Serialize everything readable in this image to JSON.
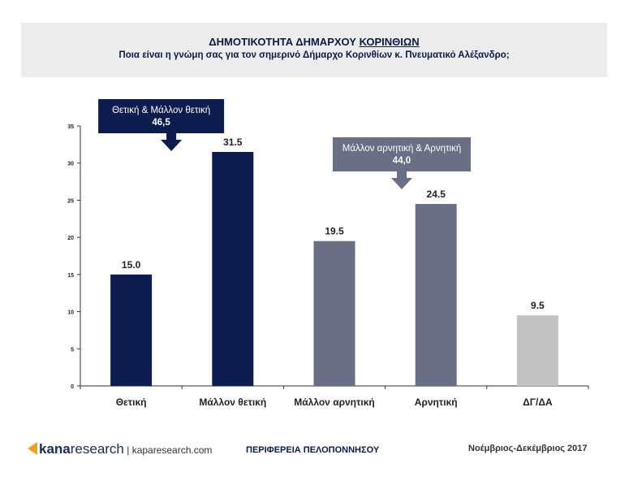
{
  "header": {
    "title_prefix": "ΔΗΜΟΤΙΚΟΤΗΤΑ ΔΗΜΑΡΧΟΥ ",
    "title_underlined": "ΚΟΡΙΝΘΙΩΝ",
    "subtitle": "Ποια είναι η γνώμη σας για τον σημερινό Δήμαρχο Κορινθίων κ. Πνευματικό Αλέξανδρο;"
  },
  "chart_data": {
    "type": "bar",
    "categories": [
      "Θετική",
      "Μάλλον θετική",
      "Μάλλον αρνητική",
      "Αρνητική",
      "ΔΓ/ΔΑ"
    ],
    "values": [
      15.0,
      31.5,
      19.5,
      24.5,
      9.5
    ],
    "value_labels": [
      "15.0",
      "31.5",
      "19.5",
      "24.5",
      "9.5"
    ],
    "bar_colors": [
      "#0d1c4e",
      "#0d1c4e",
      "#6b6f86",
      "#6b6f86",
      "#c2c2c2"
    ],
    "ylim": [
      0,
      35
    ],
    "yticks": [
      0,
      5,
      10,
      15,
      20,
      25,
      30,
      35
    ],
    "grid": false,
    "annotations": [
      {
        "label": "Θετική & Μάλλον θετική",
        "value": "46,5",
        "color": "#0d1c4e",
        "group": [
          0,
          1
        ]
      },
      {
        "label": "Μάλλον αρνητική & Αρνητική",
        "value": "44,0",
        "color": "#6b6f86",
        "group": [
          2,
          3
        ]
      }
    ]
  },
  "footer": {
    "logo_kana": "kana",
    "logo_research": "research",
    "logo_separator": " | ",
    "logo_site": "kaparesearch.com",
    "region": "ΠΕΡΙΦΕΡΕΙΑ ΠΕΛΟΠΟΝΝΗΣΟΥ",
    "date": "Νοέμβριος-Δεκέμβριος 2017"
  }
}
